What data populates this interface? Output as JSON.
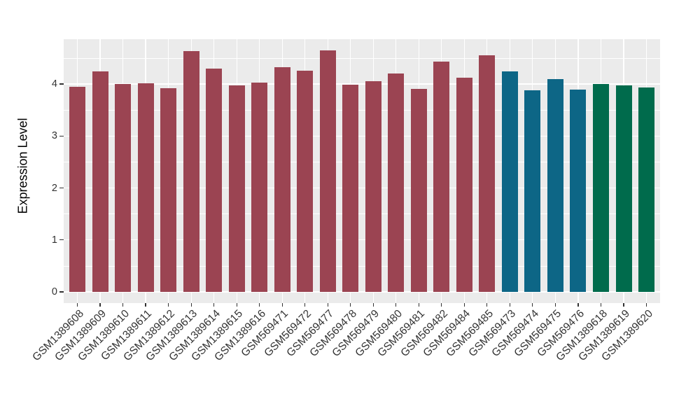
{
  "figure": {
    "background": "#FFFFFF",
    "panel_background": "#EBEBEB",
    "grid_color": "#FFFFFF",
    "tick_mark_color": "#333333",
    "tick_label_color": "#333333",
    "axis_title_color": "#000000"
  },
  "chart_data": {
    "type": "bar",
    "title": "",
    "xlabel": "",
    "ylabel": "Expression Level",
    "ylim": [
      0,
      4.88
    ],
    "yticks": [
      0,
      1,
      2,
      3,
      4
    ],
    "grid": true,
    "legend_position": "none",
    "palette": {
      "maroon": "#9B4452",
      "teal": "#0D6686",
      "green": "#006B4C"
    },
    "categories": [
      "GSM1389608",
      "GSM1389609",
      "GSM1389610",
      "GSM1389611",
      "GSM1389612",
      "GSM1389613",
      "GSM1389614",
      "GSM1389615",
      "GSM1389616",
      "GSM569471",
      "GSM569472",
      "GSM569477",
      "GSM569478",
      "GSM569479",
      "GSM569480",
      "GSM569481",
      "GSM569482",
      "GSM569484",
      "GSM569485",
      "GSM569473",
      "GSM569474",
      "GSM569475",
      "GSM569476",
      "GSM1389618",
      "GSM1389619",
      "GSM1389620"
    ],
    "values": [
      3.95,
      4.24,
      4.0,
      4.02,
      3.92,
      4.64,
      4.3,
      3.98,
      4.03,
      4.32,
      4.26,
      4.65,
      3.99,
      4.06,
      4.2,
      3.91,
      4.43,
      4.12,
      4.55,
      4.24,
      3.88,
      4.09,
      3.89,
      4.0,
      3.98,
      3.93
    ],
    "bar_colors": [
      "#9B4452",
      "#9B4452",
      "#9B4452",
      "#9B4452",
      "#9B4452",
      "#9B4452",
      "#9B4452",
      "#9B4452",
      "#9B4452",
      "#9B4452",
      "#9B4452",
      "#9B4452",
      "#9B4452",
      "#9B4452",
      "#9B4452",
      "#9B4452",
      "#9B4452",
      "#9B4452",
      "#9B4452",
      "#0D6686",
      "#0D6686",
      "#0D6686",
      "#0D6686",
      "#006B4C",
      "#006B4C",
      "#006B4C"
    ]
  }
}
